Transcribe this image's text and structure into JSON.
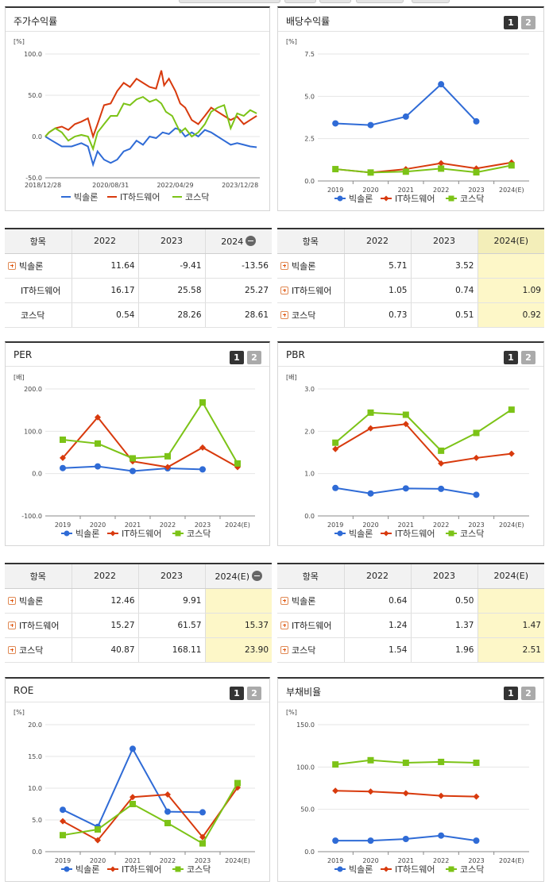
{
  "legend_names": [
    "빅솔론",
    "IT하드웨어",
    "코스닥"
  ],
  "colors": {
    "s0": "#2f6bd6",
    "s1": "#d83a0d",
    "s2": "#7cc317"
  },
  "stock_return": {
    "title": "주가수익률",
    "unit": "[%]",
    "table": {
      "header": [
        "항목",
        "2022",
        "2023",
        "2024"
      ],
      "rows": [
        {
          "name": "빅솔론",
          "values": [
            "11.64",
            "-9.41",
            "-13.56"
          ]
        },
        {
          "name": "IT하드웨어",
          "values": [
            "16.17",
            "25.58",
            "25.27"
          ]
        },
        {
          "name": "코스닥",
          "values": [
            "0.54",
            "28.26",
            "28.61"
          ]
        }
      ]
    }
  },
  "dividend": {
    "title": "배당수익률",
    "btn1": "1",
    "btn2": "2",
    "unit": "[%]",
    "table": {
      "header": [
        "항목",
        "2022",
        "2023",
        "2024(E)"
      ],
      "rows": [
        {
          "name": "빅솔론",
          "values": [
            "5.71",
            "3.52",
            ""
          ]
        },
        {
          "name": "IT하드웨어",
          "values": [
            "1.05",
            "0.74",
            "1.09"
          ]
        },
        {
          "name": "코스닥",
          "values": [
            "0.73",
            "0.51",
            "0.92"
          ]
        }
      ]
    }
  },
  "per": {
    "title": "PER",
    "btn1": "1",
    "btn2": "2",
    "unit": "[배]",
    "table": {
      "header": [
        "항목",
        "2022",
        "2023",
        "2024(E)"
      ],
      "rows": [
        {
          "name": "빅솔론",
          "values": [
            "12.46",
            "9.91",
            ""
          ]
        },
        {
          "name": "IT하드웨어",
          "values": [
            "15.27",
            "61.57",
            "15.37"
          ]
        },
        {
          "name": "코스닥",
          "values": [
            "40.87",
            "168.11",
            "23.90"
          ]
        }
      ]
    }
  },
  "pbr": {
    "title": "PBR",
    "btn1": "1",
    "btn2": "2",
    "unit": "[배]",
    "table": {
      "header": [
        "항목",
        "2022",
        "2023",
        "2024(E)"
      ],
      "rows": [
        {
          "name": "빅솔론",
          "values": [
            "0.64",
            "0.50",
            ""
          ]
        },
        {
          "name": "IT하드웨어",
          "values": [
            "1.24",
            "1.37",
            "1.47"
          ]
        },
        {
          "name": "코스닥",
          "values": [
            "1.54",
            "1.96",
            "2.51"
          ]
        }
      ]
    }
  },
  "roe": {
    "title": "ROE",
    "btn1": "1",
    "btn2": "2",
    "unit": "[%]"
  },
  "debt": {
    "title": "부채비율",
    "btn1": "1",
    "btn2": "2",
    "unit": "[%]"
  },
  "chart_data": [
    {
      "id": "stock_return",
      "type": "line",
      "ylim": [
        -50,
        100
      ],
      "yticks": [
        "100.0",
        "50.0",
        "0.0",
        "-50.0"
      ],
      "x_ticks": [
        "2018/12/28",
        "2020/08/31",
        "2022/04/29",
        "2023/12/28"
      ],
      "x_range": [
        "2018-12-28",
        "2024-06-30"
      ],
      "series": [
        {
          "name": "빅솔론",
          "points": [
            [
              "2018-12-28",
              0
            ],
            [
              "2019-03-01",
              -5
            ],
            [
              "2019-06-01",
              -12
            ],
            [
              "2019-09-01",
              -12
            ],
            [
              "2019-12-01",
              -8
            ],
            [
              "2020-02-01",
              -12
            ],
            [
              "2020-03-20",
              -34
            ],
            [
              "2020-05-01",
              -18
            ],
            [
              "2020-07-01",
              -28
            ],
            [
              "2020-09-01",
              -32
            ],
            [
              "2020-11-01",
              -28
            ],
            [
              "2021-01-01",
              -18
            ],
            [
              "2021-03-01",
              -15
            ],
            [
              "2021-05-01",
              -5
            ],
            [
              "2021-07-01",
              -10
            ],
            [
              "2021-09-01",
              0
            ],
            [
              "2021-11-01",
              -2
            ],
            [
              "2022-01-01",
              5
            ],
            [
              "2022-03-01",
              3
            ],
            [
              "2022-05-01",
              10
            ],
            [
              "2022-06-15",
              8
            ],
            [
              "2022-08-01",
              0
            ],
            [
              "2022-10-01",
              5
            ],
            [
              "2022-12-01",
              0
            ],
            [
              "2023-02-01",
              8
            ],
            [
              "2023-04-01",
              5
            ],
            [
              "2023-06-01",
              0
            ],
            [
              "2023-08-01",
              -5
            ],
            [
              "2023-10-01",
              -10
            ],
            [
              "2023-12-01",
              -8
            ],
            [
              "2024-02-01",
              -10
            ],
            [
              "2024-04-01",
              -12
            ],
            [
              "2024-06-01",
              -13
            ]
          ]
        },
        {
          "name": "IT하드웨어",
          "points": [
            [
              "2018-12-28",
              0
            ],
            [
              "2019-02-01",
              5
            ],
            [
              "2019-04-01",
              10
            ],
            [
              "2019-06-01",
              12
            ],
            [
              "2019-08-01",
              8
            ],
            [
              "2019-10-01",
              15
            ],
            [
              "2019-12-01",
              18
            ],
            [
              "2020-02-01",
              22
            ],
            [
              "2020-03-20",
              0
            ],
            [
              "2020-05-01",
              15
            ],
            [
              "2020-07-01",
              38
            ],
            [
              "2020-09-01",
              40
            ],
            [
              "2020-11-01",
              55
            ],
            [
              "2021-01-01",
              65
            ],
            [
              "2021-03-01",
              60
            ],
            [
              "2021-05-01",
              70
            ],
            [
              "2021-07-01",
              65
            ],
            [
              "2021-09-01",
              60
            ],
            [
              "2021-11-01",
              58
            ],
            [
              "2021-12-20",
              80
            ],
            [
              "2022-01-15",
              62
            ],
            [
              "2022-03-01",
              70
            ],
            [
              "2022-05-01",
              55
            ],
            [
              "2022-06-15",
              40
            ],
            [
              "2022-08-01",
              35
            ],
            [
              "2022-10-01",
              20
            ],
            [
              "2022-12-01",
              15
            ],
            [
              "2023-02-01",
              25
            ],
            [
              "2023-04-01",
              35
            ],
            [
              "2023-06-01",
              30
            ],
            [
              "2023-08-01",
              25
            ],
            [
              "2023-10-01",
              20
            ],
            [
              "2023-12-01",
              24
            ],
            [
              "2024-02-01",
              15
            ],
            [
              "2024-04-01",
              20
            ],
            [
              "2024-06-01",
              25
            ]
          ]
        },
        {
          "name": "코스닥",
          "points": [
            [
              "2018-12-28",
              0
            ],
            [
              "2019-02-01",
              5
            ],
            [
              "2019-04-01",
              10
            ],
            [
              "2019-06-01",
              5
            ],
            [
              "2019-08-01",
              -5
            ],
            [
              "2019-10-01",
              0
            ],
            [
              "2019-12-01",
              2
            ],
            [
              "2020-02-01",
              0
            ],
            [
              "2020-03-20",
              -15
            ],
            [
              "2020-05-01",
              5
            ],
            [
              "2020-07-01",
              15
            ],
            [
              "2020-09-01",
              25
            ],
            [
              "2020-11-01",
              25
            ],
            [
              "2021-01-01",
              40
            ],
            [
              "2021-03-01",
              38
            ],
            [
              "2021-05-01",
              45
            ],
            [
              "2021-07-01",
              48
            ],
            [
              "2021-09-01",
              42
            ],
            [
              "2021-11-01",
              45
            ],
            [
              "2021-12-20",
              40
            ],
            [
              "2022-02-01",
              30
            ],
            [
              "2022-04-01",
              25
            ],
            [
              "2022-06-15",
              5
            ],
            [
              "2022-08-01",
              10
            ],
            [
              "2022-10-01",
              0
            ],
            [
              "2022-12-01",
              5
            ],
            [
              "2023-02-01",
              15
            ],
            [
              "2023-04-01",
              30
            ],
            [
              "2023-06-01",
              35
            ],
            [
              "2023-08-01",
              38
            ],
            [
              "2023-10-01",
              10
            ],
            [
              "2023-12-01",
              28
            ],
            [
              "2024-02-01",
              25
            ],
            [
              "2024-04-01",
              32
            ],
            [
              "2024-06-01",
              28
            ]
          ]
        }
      ]
    },
    {
      "id": "dividend",
      "type": "line",
      "ylim": [
        0,
        7.5
      ],
      "yticks": [
        "7.5",
        "5.0",
        "2.5",
        "0.0"
      ],
      "categories": [
        "2019",
        "2020",
        "2021",
        "2022",
        "2023",
        "2024(E)"
      ],
      "series": [
        {
          "name": "빅솔론",
          "values": [
            3.4,
            3.3,
            3.8,
            5.71,
            3.52,
            null
          ]
        },
        {
          "name": "IT하드웨어",
          "values": [
            0.7,
            0.5,
            0.7,
            1.05,
            0.74,
            1.09
          ]
        },
        {
          "name": "코스닥",
          "values": [
            0.7,
            0.5,
            0.55,
            0.73,
            0.51,
            0.92
          ]
        }
      ]
    },
    {
      "id": "per",
      "type": "line",
      "ylim": [
        -100,
        200
      ],
      "yticks": [
        "200.0",
        "100.0",
        "0.0",
        "-100.0"
      ],
      "categories": [
        "2019",
        "2020",
        "2021",
        "2022",
        "2023",
        "2024(E)"
      ],
      "series": [
        {
          "name": "빅솔론",
          "values": [
            13,
            17,
            6,
            12.46,
            9.91,
            null
          ]
        },
        {
          "name": "IT하드웨어",
          "values": [
            37,
            133,
            29,
            15.27,
            61.57,
            15.37
          ]
        },
        {
          "name": "코스닥",
          "values": [
            80,
            71,
            36,
            40.87,
            168.11,
            23.9
          ]
        }
      ]
    },
    {
      "id": "pbr",
      "type": "line",
      "ylim": [
        0,
        3
      ],
      "yticks": [
        "3.0",
        "2.0",
        "1.0",
        "0.0"
      ],
      "categories": [
        "2019",
        "2020",
        "2021",
        "2022",
        "2023",
        "2024(E)"
      ],
      "series": [
        {
          "name": "빅솔론",
          "values": [
            0.66,
            0.53,
            0.65,
            0.64,
            0.5,
            null
          ]
        },
        {
          "name": "IT하드웨어",
          "values": [
            1.58,
            2.07,
            2.17,
            1.24,
            1.37,
            1.47
          ]
        },
        {
          "name": "코스닥",
          "values": [
            1.73,
            2.44,
            2.39,
            1.54,
            1.96,
            2.51
          ]
        }
      ]
    },
    {
      "id": "roe",
      "type": "line",
      "ylim": [
        0,
        20
      ],
      "yticks": [
        "20.0",
        "15.0",
        "10.0",
        "5.0",
        "0.0"
      ],
      "categories": [
        "2019",
        "2020",
        "2021",
        "2022",
        "2023",
        "2024(E)"
      ],
      "series": [
        {
          "name": "빅솔론",
          "values": [
            6.6,
            3.9,
            16.2,
            6.3,
            6.2,
            null
          ]
        },
        {
          "name": "IT하드웨어",
          "values": [
            4.8,
            1.8,
            8.6,
            9.0,
            2.3,
            10.1
          ]
        },
        {
          "name": "코스닥",
          "values": [
            2.6,
            3.5,
            7.5,
            4.5,
            1.3,
            10.8
          ]
        }
      ]
    },
    {
      "id": "debt",
      "type": "line",
      "ylim": [
        0,
        150
      ],
      "yticks": [
        "150.0",
        "100.0",
        "50.0",
        "0.0"
      ],
      "categories": [
        "2019",
        "2020",
        "2021",
        "2022",
        "2023",
        "2024(E)"
      ],
      "series": [
        {
          "name": "빅솔론",
          "values": [
            13,
            13,
            15,
            19,
            13,
            null
          ]
        },
        {
          "name": "IT하드웨어",
          "values": [
            72,
            71,
            69,
            66,
            65,
            null
          ]
        },
        {
          "name": "코스닥",
          "values": [
            103,
            108,
            105,
            106,
            105,
            null
          ]
        }
      ]
    }
  ]
}
